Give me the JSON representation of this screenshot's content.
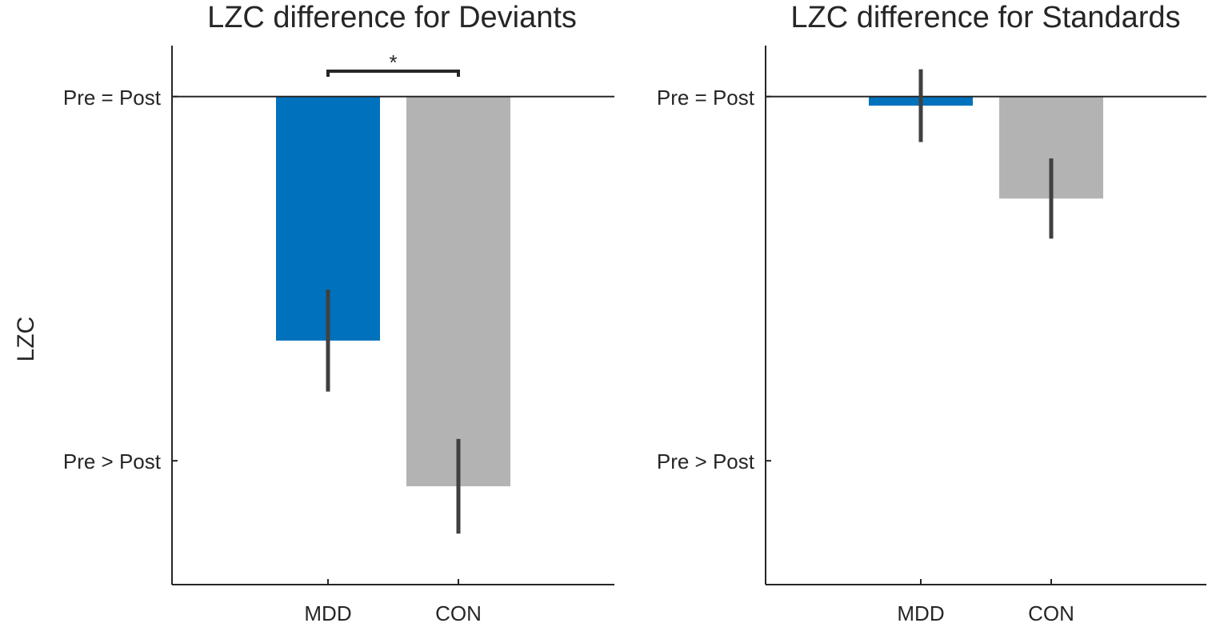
{
  "chart_data": [
    {
      "type": "bar",
      "title": "LZC difference for Deviants",
      "ylabel": "LZC",
      "xlabel": "",
      "categories": [
        "MDD",
        "CON"
      ],
      "values": [
        -0.67,
        -1.07
      ],
      "errors": [
        0.14,
        0.13
      ],
      "colors": [
        "#0072BD",
        "#B3B3B3"
      ],
      "ylim": [
        -1.34,
        0.14
      ],
      "yticks": [
        {
          "value": 0,
          "label": "Pre = Post"
        },
        {
          "value": -1,
          "label": "Pre > Post"
        }
      ],
      "significance": {
        "between": [
          "MDD",
          "CON"
        ],
        "label": "*"
      }
    },
    {
      "type": "bar",
      "title": "LZC difference for Standards",
      "ylabel": "",
      "xlabel": "",
      "categories": [
        "MDD",
        "CON"
      ],
      "values": [
        -0.025,
        -0.28
      ],
      "errors": [
        0.1,
        0.11
      ],
      "colors": [
        "#0072BD",
        "#B3B3B3"
      ],
      "ylim": [
        -1.34,
        0.14
      ],
      "yticks": [
        {
          "value": 0,
          "label": "Pre = Post"
        },
        {
          "value": -1,
          "label": "Pre > Post"
        }
      ],
      "significance": null
    }
  ]
}
